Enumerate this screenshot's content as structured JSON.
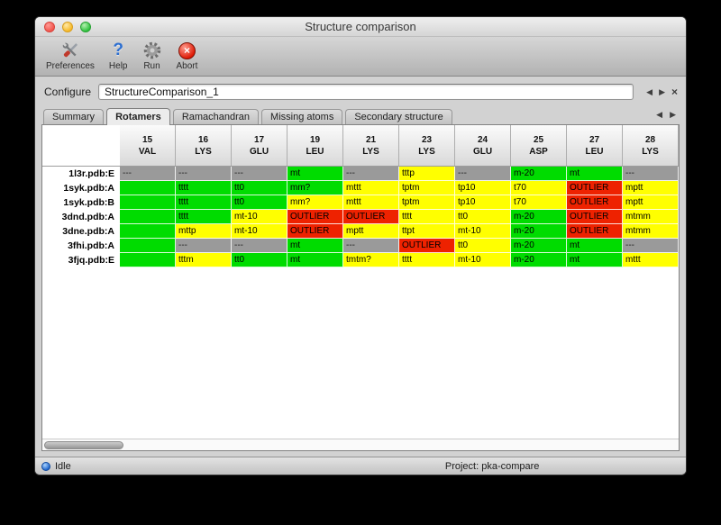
{
  "window": {
    "title": "Structure comparison"
  },
  "toolbar": {
    "items": [
      {
        "label": "Preferences",
        "icon": "tools-icon"
      },
      {
        "label": "Help",
        "icon": "help-icon"
      },
      {
        "label": "Run",
        "icon": "gear-icon"
      },
      {
        "label": "Abort",
        "icon": "abort-icon"
      }
    ]
  },
  "configure": {
    "label": "Configure",
    "value": "StructureComparison_1",
    "nav": {
      "prev": "◀",
      "next": "▶",
      "close": "×"
    }
  },
  "tabs": {
    "items": [
      {
        "label": "Summary",
        "active": false
      },
      {
        "label": "Rotamers",
        "active": true
      },
      {
        "label": "Ramachandran",
        "active": false
      },
      {
        "label": "Missing atoms",
        "active": false
      },
      {
        "label": "Secondary structure",
        "active": false
      }
    ],
    "nav": {
      "prev": "◀",
      "next": "▶"
    }
  },
  "colors": {
    "ok": "#00dc00",
    "warn": "#ffff00",
    "outlier": "#ee2200",
    "missing": "#9a9a9a"
  },
  "table": {
    "columns": [
      {
        "num": "15",
        "res": "VAL"
      },
      {
        "num": "16",
        "res": "LYS"
      },
      {
        "num": "17",
        "res": "GLU"
      },
      {
        "num": "19",
        "res": "LEU"
      },
      {
        "num": "21",
        "res": "LYS"
      },
      {
        "num": "23",
        "res": "LYS"
      },
      {
        "num": "24",
        "res": "GLU"
      },
      {
        "num": "25",
        "res": "ASP"
      },
      {
        "num": "27",
        "res": "LEU"
      },
      {
        "num": "28",
        "res": "LYS"
      }
    ],
    "rows": [
      {
        "label": "1l3r.pdb:E",
        "cells": [
          {
            "text": "---",
            "state": "missing"
          },
          {
            "text": "---",
            "state": "missing"
          },
          {
            "text": "---",
            "state": "missing"
          },
          {
            "text": "mt",
            "state": "ok"
          },
          {
            "text": "---",
            "state": "missing"
          },
          {
            "text": "tttp",
            "state": "warn"
          },
          {
            "text": "---",
            "state": "missing"
          },
          {
            "text": "m-20",
            "state": "ok"
          },
          {
            "text": "mt",
            "state": "ok"
          },
          {
            "text": "---",
            "state": "missing"
          }
        ]
      },
      {
        "label": "1syk.pdb:A",
        "cells": [
          {
            "text": "",
            "state": "ok"
          },
          {
            "text": "tttt",
            "state": "ok"
          },
          {
            "text": "tt0",
            "state": "ok"
          },
          {
            "text": "mm?",
            "state": "ok"
          },
          {
            "text": "mttt",
            "state": "warn"
          },
          {
            "text": "tptm",
            "state": "warn"
          },
          {
            "text": "tp10",
            "state": "warn"
          },
          {
            "text": "t70",
            "state": "warn"
          },
          {
            "text": "OUTLIER",
            "state": "outlier"
          },
          {
            "text": "mptt",
            "state": "warn"
          }
        ]
      },
      {
        "label": "1syk.pdb:B",
        "cells": [
          {
            "text": "",
            "state": "ok"
          },
          {
            "text": "tttt",
            "state": "ok"
          },
          {
            "text": "tt0",
            "state": "ok"
          },
          {
            "text": "mm?",
            "state": "warn"
          },
          {
            "text": "mttt",
            "state": "warn"
          },
          {
            "text": "tptm",
            "state": "warn"
          },
          {
            "text": "tp10",
            "state": "warn"
          },
          {
            "text": "t70",
            "state": "warn"
          },
          {
            "text": "OUTLIER",
            "state": "outlier"
          },
          {
            "text": "mptt",
            "state": "warn"
          }
        ]
      },
      {
        "label": "3dnd.pdb:A",
        "cells": [
          {
            "text": "",
            "state": "ok"
          },
          {
            "text": "tttt",
            "state": "ok"
          },
          {
            "text": "mt-10",
            "state": "warn"
          },
          {
            "text": "OUTLIER",
            "state": "outlier"
          },
          {
            "text": "OUTLIER",
            "state": "outlier"
          },
          {
            "text": "tttt",
            "state": "warn"
          },
          {
            "text": "tt0",
            "state": "warn"
          },
          {
            "text": "m-20",
            "state": "ok"
          },
          {
            "text": "OUTLIER",
            "state": "outlier"
          },
          {
            "text": "mtmm",
            "state": "warn"
          }
        ]
      },
      {
        "label": "3dne.pdb:A",
        "cells": [
          {
            "text": "",
            "state": "ok"
          },
          {
            "text": "mttp",
            "state": "warn"
          },
          {
            "text": "mt-10",
            "state": "warn"
          },
          {
            "text": "OUTLIER",
            "state": "outlier"
          },
          {
            "text": "mptt",
            "state": "warn"
          },
          {
            "text": "ttpt",
            "state": "warn"
          },
          {
            "text": "mt-10",
            "state": "warn"
          },
          {
            "text": "m-20",
            "state": "ok"
          },
          {
            "text": "OUTLIER",
            "state": "outlier"
          },
          {
            "text": "mtmm",
            "state": "warn"
          }
        ]
      },
      {
        "label": "3fhi.pdb:A",
        "cells": [
          {
            "text": "",
            "state": "ok"
          },
          {
            "text": "---",
            "state": "missing"
          },
          {
            "text": "---",
            "state": "missing"
          },
          {
            "text": "mt",
            "state": "ok"
          },
          {
            "text": "---",
            "state": "missing"
          },
          {
            "text": "OUTLIER",
            "state": "outlier"
          },
          {
            "text": "tt0",
            "state": "warn"
          },
          {
            "text": "m-20",
            "state": "ok"
          },
          {
            "text": "mt",
            "state": "ok"
          },
          {
            "text": "---",
            "state": "missing"
          }
        ]
      },
      {
        "label": "3fjq.pdb:E",
        "cells": [
          {
            "text": "",
            "state": "ok"
          },
          {
            "text": "tttm",
            "state": "warn"
          },
          {
            "text": "tt0",
            "state": "ok"
          },
          {
            "text": "mt",
            "state": "ok"
          },
          {
            "text": "tmtm?",
            "state": "warn"
          },
          {
            "text": "tttt",
            "state": "warn"
          },
          {
            "text": "mt-10",
            "state": "warn"
          },
          {
            "text": "m-20",
            "state": "ok"
          },
          {
            "text": "mt",
            "state": "ok"
          },
          {
            "text": "mttt",
            "state": "warn"
          }
        ]
      }
    ]
  },
  "statusbar": {
    "status": "Idle",
    "project": "Project: pka-compare"
  }
}
